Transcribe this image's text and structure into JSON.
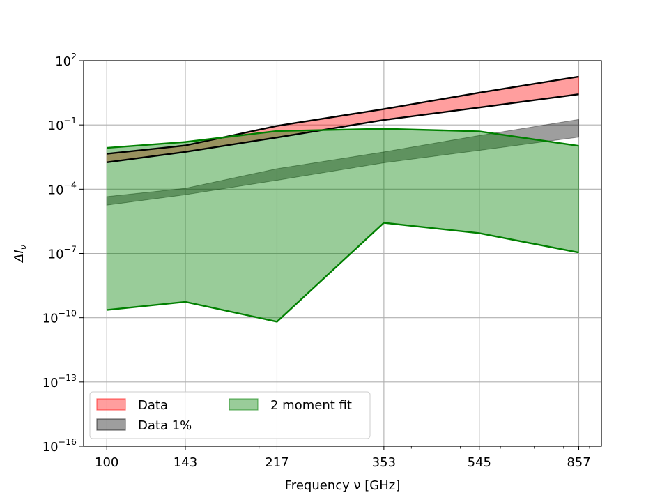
{
  "chart_data": {
    "type": "area",
    "title": "",
    "xlabel": "Frequency ν [GHz]",
    "ylabel": "ΔI_ν",
    "x_scale": "log",
    "y_scale": "log",
    "x": [
      100,
      143,
      217,
      353,
      545,
      857
    ],
    "x_tick_labels": [
      "100",
      "143",
      "217",
      "353",
      "545",
      "857"
    ],
    "xlim": [
      90,
      950
    ],
    "ylim": [
      1e-16,
      100
    ],
    "y_ticks": [
      {
        "base": "10",
        "exp": "2",
        "value": 100
      },
      {
        "base": "10",
        "exp": "−1",
        "value": 0.1
      },
      {
        "base": "10",
        "exp": "−4",
        "value": 0.0001
      },
      {
        "base": "10",
        "exp": "−7",
        "value": 1e-07
      },
      {
        "base": "10",
        "exp": "−10",
        "value": 1e-10
      },
      {
        "base": "10",
        "exp": "−13",
        "value": 1e-13
      },
      {
        "base": "10",
        "exp": "−16",
        "value": 1e-16
      }
    ],
    "grid": true,
    "legend_position": "lower-left",
    "series": [
      {
        "name": "Data",
        "color": "#ff0000",
        "alpha": 0.38,
        "upper": [
          0.0045,
          0.011,
          0.09,
          0.55,
          3.2,
          18.0
        ],
        "lower": [
          0.0018,
          0.0055,
          0.026,
          0.17,
          0.65,
          2.7
        ],
        "edge_color": "#000000"
      },
      {
        "name": "Data 1%",
        "color": "#000000",
        "alpha": 0.38,
        "upper": [
          4.5e-05,
          0.00011,
          0.0009,
          0.0055,
          0.032,
          0.18
        ],
        "lower": [
          1.8e-05,
          5.5e-05,
          0.00026,
          0.0017,
          0.0065,
          0.027
        ]
      },
      {
        "name": "2 moment fit",
        "color": "#008000",
        "alpha": 0.4,
        "upper": [
          0.0085,
          0.016,
          0.052,
          0.066,
          0.05,
          0.0105
        ],
        "lower": [
          2.3e-10,
          5.5e-10,
          6.5e-11,
          2.7e-06,
          8.8e-07,
          1.1e-07
        ],
        "edge_color": "#008000"
      }
    ]
  }
}
